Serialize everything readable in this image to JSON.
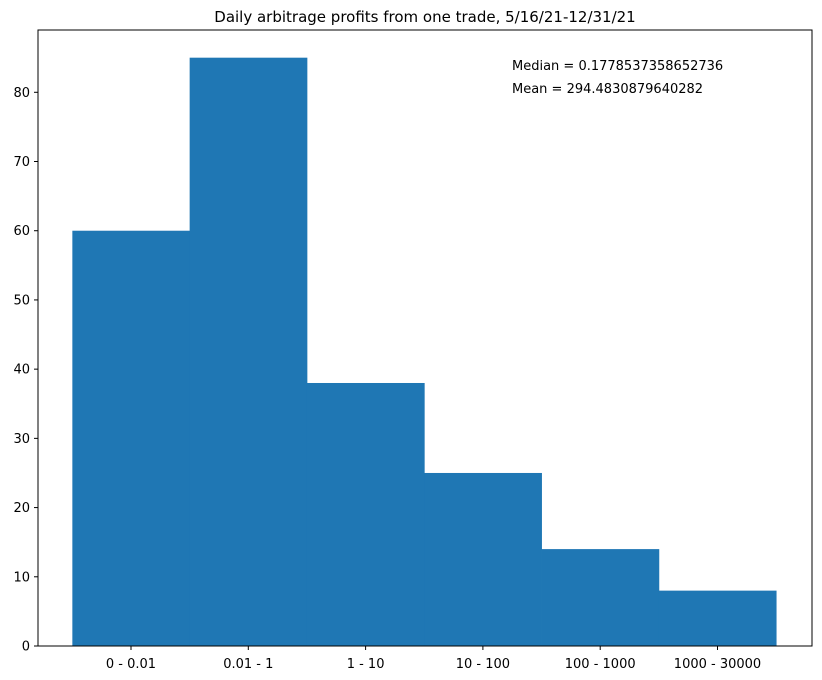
{
  "chart_data": {
    "type": "bar",
    "title": "Daily arbitrage profits from one trade, 5/16/21-12/31/21",
    "categories": [
      "0 - 0.01",
      "0.01 - 1",
      "1 - 10",
      "10 - 100",
      "100 - 1000",
      "1000 - 30000"
    ],
    "values": [
      60,
      85,
      38,
      25,
      14,
      8
    ],
    "ylim": [
      0,
      89
    ],
    "yticks": [
      0,
      10,
      20,
      30,
      40,
      50,
      60,
      70,
      80
    ],
    "xlabel": "",
    "ylabel": "",
    "bar_color": "#1f77b4",
    "grid": false,
    "annotations": [
      "Median = 0.1778537358652736",
      "Mean = 294.4830879640282"
    ]
  }
}
